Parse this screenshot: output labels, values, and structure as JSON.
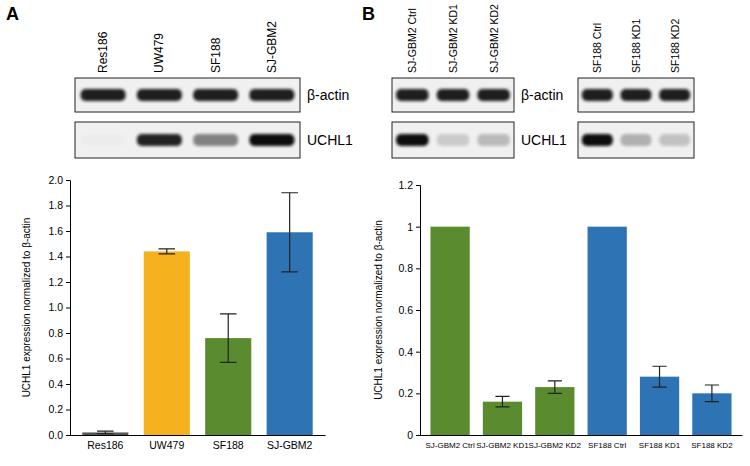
{
  "panels": [
    "A",
    "B"
  ],
  "blots": [
    {
      "lanes": [
        "Res186",
        "UW479",
        "SF188",
        "SJ-GBM2"
      ],
      "rows": [
        "β-actin",
        "UCHL1"
      ]
    },
    {
      "lanes": [
        "SJ-GBM2 Ctrl",
        "SJ-GBM2 KD1",
        "SJ-GBM2 KD2"
      ],
      "rows": [
        "β-actin",
        "UCHL1"
      ]
    },
    {
      "lanes": [
        "SF188 Ctrl",
        "SF188 KD1",
        "SF188 KD2"
      ]
    }
  ],
  "chart_data": [
    {
      "type": "bar",
      "y_label": "UCHL1 expression normalized to β-actin",
      "categories": [
        "Res186",
        "UW479",
        "SF188",
        "SJ-GBM2"
      ],
      "values": [
        0.02,
        1.44,
        0.76,
        1.59
      ],
      "errors": [
        0.01,
        0.02,
        0.19,
        0.31
      ],
      "colors": [
        "#555555",
        "#f5b11e",
        "#5a8c2f",
        "#2e74b5"
      ],
      "ylim": [
        0,
        2.0
      ],
      "yticks": [
        {
          "value": 0,
          "label": "0.0"
        },
        0.2,
        0.4,
        0.6,
        0.8,
        {
          "value": 1,
          "label": "1.0"
        },
        1.2,
        1.4,
        1.6,
        1.8,
        {
          "value": 2,
          "label": "2.0"
        }
      ]
    },
    {
      "type": "bar",
      "y_label": "UCHL1 expression normalized to β-actin",
      "categories": [
        "SJ-GBM2 Ctrl",
        "SJ-GBM2 KD1",
        "SJ-GBM2 KD2",
        "SF188 Ctrl",
        "SF188 KD1",
        "SF188 KD2"
      ],
      "values": [
        1,
        0.16,
        0.23,
        1,
        0.28,
        0.2
      ],
      "errors": [
        null,
        0.025,
        0.03,
        null,
        0.05,
        0.04
      ],
      "colors": [
        "#5a8c2f",
        "#5a8c2f",
        "#5a8c2f",
        "#2e74b5",
        "#2e74b5",
        "#2e74b5"
      ],
      "ylim": [
        0,
        1.2
      ],
      "yticks": [
        0,
        0.2,
        0.4,
        0.6,
        0.8,
        1,
        1.2
      ]
    }
  ]
}
